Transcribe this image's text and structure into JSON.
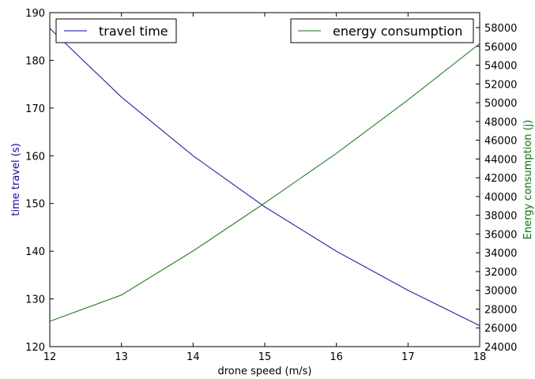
{
  "chart_data": {
    "type": "line",
    "x": [
      12,
      13,
      14,
      15,
      16,
      17,
      18
    ],
    "xlabel": "drone speed (m/s)",
    "xlim": [
      12,
      18
    ],
    "xticks": [
      12,
      13,
      14,
      15,
      16,
      17,
      18
    ],
    "y_left": {
      "label": "time travel (s)",
      "label_color": "#0000ff",
      "lim": [
        120,
        190
      ],
      "ticks": [
        120,
        130,
        140,
        150,
        160,
        170,
        180,
        190
      ]
    },
    "y_right": {
      "label": "Energy consumption (j)",
      "label_color": "#008000",
      "lim": [
        24000,
        59600
      ],
      "ticks": [
        24000,
        26000,
        28000,
        30000,
        32000,
        34000,
        36000,
        38000,
        40000,
        42000,
        44000,
        46000,
        48000,
        50000,
        52000,
        54000,
        56000,
        58000
      ]
    },
    "series": [
      {
        "name": "travel time",
        "axis": "left",
        "color": "#0000ff",
        "values": [
          186.7,
          172.3,
          160.0,
          149.3,
          140.0,
          131.8,
          124.4
        ]
      },
      {
        "name": "energy consumption",
        "axis": "right",
        "color": "#008000",
        "values": [
          26700,
          29500,
          34200,
          39300,
          44600,
          50300,
          56300
        ]
      }
    ],
    "legends": [
      {
        "position": "top-left",
        "entries": [
          "travel time"
        ]
      },
      {
        "position": "top-right",
        "entries": [
          "energy consumption"
        ]
      }
    ],
    "grid": false
  }
}
